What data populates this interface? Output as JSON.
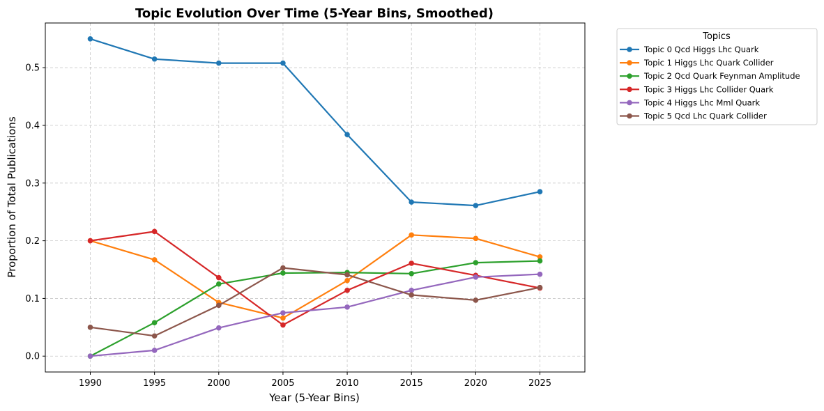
{
  "chart_data": {
    "type": "line",
    "title": "Topic Evolution Over Time (5-Year Bins, Smoothed)",
    "xlabel": "Year (5-Year Bins)",
    "ylabel": "Proportion of Total Publications",
    "x": [
      1990,
      1995,
      2000,
      2005,
      2010,
      2015,
      2020,
      2025
    ],
    "xticks": [
      "1990",
      "1995",
      "2000",
      "2005",
      "2010",
      "2015",
      "2020",
      "2025"
    ],
    "yticks": [
      "0.0",
      "0.1",
      "0.2",
      "0.3",
      "0.4",
      "0.5"
    ],
    "xlim": [
      1986.5,
      2028.5
    ],
    "ylim": [
      -0.0275,
      0.5775
    ],
    "grid": true,
    "legend_title": "Topics",
    "legend_position": "outside upper right",
    "series": [
      {
        "name": "Topic 0 Qcd Higgs Lhc Quark",
        "color": "#1f77b4",
        "values": [
          0.55,
          0.515,
          0.508,
          0.508,
          0.384,
          0.267,
          0.261,
          0.285
        ]
      },
      {
        "name": "Topic 1 Higgs Lhc Quark Collider",
        "color": "#ff7f0e",
        "values": [
          0.2,
          0.167,
          0.093,
          0.066,
          0.131,
          0.21,
          0.204,
          0.172
        ]
      },
      {
        "name": "Topic 2 Qcd Quark Feynman Amplitude",
        "color": "#2ca02c",
        "values": [
          0.0,
          0.058,
          0.125,
          0.144,
          0.145,
          0.143,
          0.162,
          0.165
        ]
      },
      {
        "name": "Topic 3 Higgs Lhc Collider Quark",
        "color": "#d62728",
        "values": [
          0.2,
          0.216,
          0.136,
          0.054,
          0.114,
          0.161,
          0.14,
          0.118
        ]
      },
      {
        "name": "Topic 4 Higgs Lhc Mml Quark",
        "color": "#9467bd",
        "values": [
          0.0,
          0.01,
          0.049,
          0.075,
          0.085,
          0.114,
          0.137,
          0.142
        ]
      },
      {
        "name": "Topic 5 Qcd Lhc Quark Collider",
        "color": "#8c564b",
        "values": [
          0.05,
          0.035,
          0.088,
          0.153,
          0.141,
          0.106,
          0.097,
          0.119
        ]
      }
    ]
  }
}
